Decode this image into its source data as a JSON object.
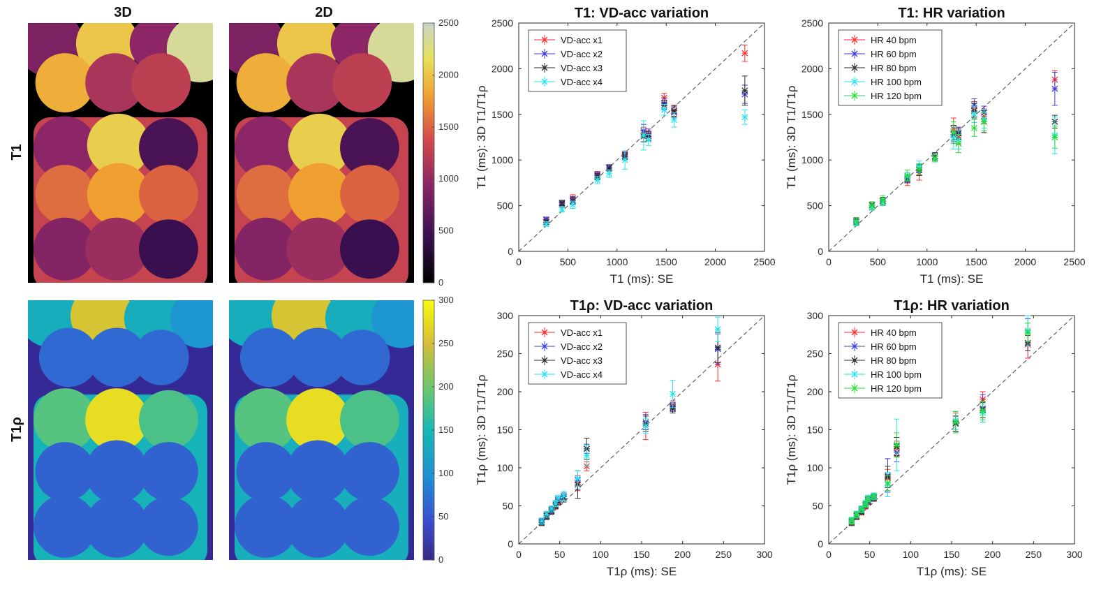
{
  "maps": {
    "col_headers": [
      "3D",
      "2D"
    ],
    "row_labels": [
      "T1",
      "T1ρ"
    ],
    "colorbars": [
      {
        "ticks": [
          0,
          500,
          1000,
          1500,
          2000,
          2500
        ],
        "range": [
          0,
          2500
        ],
        "colormap": "inferno-like"
      },
      {
        "ticks": [
          0,
          50,
          100,
          150,
          200,
          250,
          300
        ],
        "range": [
          0,
          300
        ],
        "colormap": "parula"
      }
    ]
  },
  "chart_data": [
    {
      "type": "scatter",
      "title": "T1: VD-acc variation",
      "xlabel": "T1 (ms): SE",
      "ylabel": "T1 (ms): 3D T1/T1ρ",
      "xlim": [
        0,
        2500
      ],
      "ylim": [
        0,
        2500
      ],
      "xticks": [
        0,
        500,
        1000,
        1500,
        2000,
        2500
      ],
      "yticks": [
        0,
        500,
        1000,
        1500,
        2000,
        2500
      ],
      "identity_line": true,
      "legend_position": "top-left",
      "x": [
        280,
        440,
        550,
        800,
        920,
        1080,
        1270,
        1320,
        1480,
        1580,
        2300
      ],
      "series": [
        {
          "name": "VD-acc x1",
          "color": "#ff2a2a",
          "values": [
            340,
            510,
            580,
            840,
            910,
            1050,
            1300,
            1270,
            1680,
            1530,
            2170
          ],
          "err": [
            25,
            30,
            40,
            35,
            30,
            40,
            60,
            50,
            50,
            60,
            90
          ]
        },
        {
          "name": "VD-acc x2",
          "color": "#3a3adf",
          "values": [
            350,
            520,
            560,
            830,
            920,
            1060,
            1320,
            1280,
            1620,
            1520,
            1720
          ],
          "err": [
            25,
            30,
            40,
            35,
            30,
            40,
            70,
            60,
            60,
            60,
            100
          ]
        },
        {
          "name": "VD-acc x3",
          "color": "#2b2b2b",
          "values": [
            320,
            530,
            550,
            820,
            910,
            1040,
            1260,
            1260,
            1600,
            1540,
            1760
          ],
          "err": [
            25,
            30,
            40,
            35,
            30,
            40,
            60,
            50,
            50,
            60,
            160
          ]
        },
        {
          "name": "VD-acc x4",
          "color": "#22e5ee",
          "values": [
            300,
            460,
            510,
            780,
            850,
            1000,
            1270,
            1220,
            1550,
            1440,
            1470
          ],
          "err": [
            25,
            30,
            40,
            40,
            40,
            100,
            160,
            60,
            60,
            80,
            80
          ]
        }
      ]
    },
    {
      "type": "scatter",
      "title": "T1: HR variation",
      "xlabel": "T1 (ms): SE",
      "ylabel": "T1 (ms): 3D T1/T1ρ",
      "xlim": [
        0,
        2500
      ],
      "ylim": [
        0,
        2500
      ],
      "xticks": [
        0,
        500,
        1000,
        1500,
        2000,
        2500
      ],
      "yticks": [
        0,
        500,
        1000,
        1500,
        2000,
        2500
      ],
      "identity_line": true,
      "legend_position": "top-left",
      "x": [
        280,
        440,
        550,
        800,
        920,
        1080,
        1270,
        1320,
        1480,
        1580,
        2300
      ],
      "series": [
        {
          "name": "HR 40 bpm",
          "color": "#ff2a2a",
          "values": [
            330,
            500,
            550,
            780,
            860,
            1040,
            1340,
            1250,
            1560,
            1480,
            1880
          ],
          "err": [
            40,
            40,
            40,
            60,
            80,
            40,
            120,
            80,
            80,
            80,
            100
          ]
        },
        {
          "name": "HR 60 bpm",
          "color": "#3a3adf",
          "values": [
            320,
            510,
            550,
            800,
            900,
            1040,
            1280,
            1300,
            1600,
            1520,
            1780
          ],
          "err": [
            30,
            30,
            40,
            40,
            40,
            40,
            80,
            60,
            70,
            70,
            180
          ]
        },
        {
          "name": "HR 80 bpm",
          "color": "#2b2b2b",
          "values": [
            330,
            510,
            550,
            790,
            890,
            1040,
            1300,
            1290,
            1540,
            1420,
            1420
          ],
          "err": [
            30,
            30,
            40,
            40,
            60,
            40,
            80,
            60,
            80,
            120,
            70
          ]
        },
        {
          "name": "HR 100 bpm",
          "color": "#22e5ee",
          "values": [
            310,
            480,
            540,
            820,
            930,
            1020,
            1240,
            1220,
            1500,
            1450,
            1270
          ],
          "err": [
            30,
            30,
            40,
            40,
            60,
            40,
            120,
            100,
            90,
            100,
            200
          ]
        },
        {
          "name": "HR 120 bpm",
          "color": "#22dd33",
          "values": [
            330,
            500,
            560,
            830,
            900,
            1020,
            1300,
            1180,
            1350,
            1420,
            1250
          ],
          "err": [
            40,
            40,
            50,
            60,
            60,
            40,
            120,
            100,
            90,
            100,
            120
          ]
        }
      ]
    },
    {
      "type": "scatter",
      "title": "T1ρ: VD-acc variation",
      "xlabel": "T1ρ (ms): SE",
      "ylabel": "T1ρ (ms): 3D T1/T1ρ",
      "xlim": [
        0,
        300
      ],
      "ylim": [
        0,
        300
      ],
      "xticks": [
        0,
        50,
        100,
        150,
        200,
        250,
        300
      ],
      "yticks": [
        0,
        50,
        100,
        150,
        200,
        250,
        300
      ],
      "identity_line": true,
      "legend_position": "top-left",
      "x": [
        28,
        34,
        40,
        45,
        48,
        55,
        72,
        83,
        155,
        188,
        243
      ],
      "series": [
        {
          "name": "VD-acc x1",
          "color": "#ff2a2a",
          "values": [
            30,
            38,
            45,
            50,
            55,
            62,
            80,
            102,
            155,
            182,
            236
          ],
          "err": [
            4,
            4,
            4,
            4,
            4,
            5,
            10,
            6,
            18,
            6,
            22
          ]
        },
        {
          "name": "VD-acc x2",
          "color": "#3a3adf",
          "values": [
            29,
            37,
            44,
            52,
            58,
            62,
            84,
            125,
            160,
            180,
            256
          ],
          "err": [
            4,
            4,
            4,
            4,
            4,
            5,
            12,
            6,
            10,
            6,
            20
          ]
        },
        {
          "name": "VD-acc x3",
          "color": "#2b2b2b",
          "values": [
            28,
            36,
            43,
            50,
            56,
            60,
            78,
            125,
            158,
            178,
            258
          ],
          "err": [
            4,
            4,
            4,
            4,
            4,
            5,
            18,
            14,
            10,
            6,
            20
          ]
        },
        {
          "name": "VD-acc x4",
          "color": "#22e5ee",
          "values": [
            30,
            39,
            46,
            53,
            60,
            63,
            86,
            116,
            155,
            197,
            282
          ],
          "err": [
            4,
            4,
            4,
            4,
            4,
            6,
            10,
            14,
            10,
            18,
            16
          ]
        }
      ]
    },
    {
      "type": "scatter",
      "title": "T1ρ: HR variation",
      "xlabel": "T1ρ (ms): SE",
      "ylabel": "T1ρ (ms): 3D T1/T1ρ",
      "xlim": [
        0,
        300
      ],
      "ylim": [
        0,
        300
      ],
      "xticks": [
        0,
        50,
        100,
        150,
        200,
        250,
        300
      ],
      "yticks": [
        0,
        50,
        100,
        150,
        200,
        250,
        300
      ],
      "identity_line": true,
      "legend_position": "top-left",
      "x": [
        28,
        34,
        40,
        45,
        48,
        55,
        72,
        83,
        155,
        188,
        243
      ],
      "series": [
        {
          "name": "HR 40 bpm",
          "color": "#ff2a2a",
          "values": [
            29,
            37,
            43,
            50,
            57,
            62,
            86,
            125,
            160,
            190,
            262
          ],
          "err": [
            4,
            4,
            4,
            4,
            4,
            4,
            12,
            10,
            12,
            10,
            18
          ]
        },
        {
          "name": "HR 60 bpm",
          "color": "#3a3adf",
          "values": [
            30,
            38,
            44,
            52,
            58,
            61,
            90,
            120,
            158,
            178,
            280
          ],
          "err": [
            4,
            4,
            4,
            4,
            4,
            4,
            22,
            12,
            10,
            18,
            16
          ]
        },
        {
          "name": "HR 80 bpm",
          "color": "#2b2b2b",
          "values": [
            28,
            36,
            42,
            51,
            56,
            60,
            88,
            128,
            158,
            176,
            264
          ],
          "err": [
            4,
            4,
            4,
            4,
            4,
            4,
            14,
            12,
            10,
            10,
            10
          ]
        },
        {
          "name": "HR 100 bpm",
          "color": "#22e5ee",
          "values": [
            31,
            39,
            46,
            53,
            60,
            63,
            78,
            130,
            162,
            172,
            280
          ],
          "err": [
            4,
            4,
            4,
            4,
            4,
            4,
            16,
            34,
            12,
            12,
            20
          ]
        },
        {
          "name": "HR 120 bpm",
          "color": "#22dd33",
          "values": [
            30,
            38,
            45,
            52,
            59,
            62,
            80,
            130,
            160,
            175,
            278
          ],
          "err": [
            4,
            4,
            4,
            4,
            4,
            4,
            10,
            16,
            14,
            12,
            12
          ]
        }
      ]
    }
  ]
}
